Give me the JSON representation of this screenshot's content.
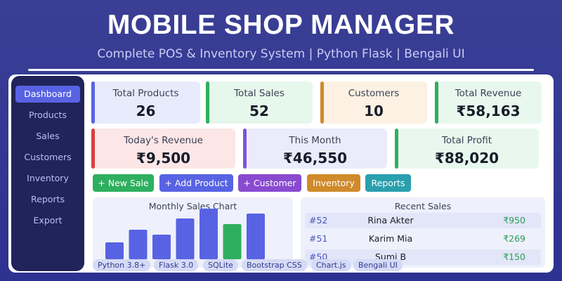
{
  "header": {
    "title": "MOBILE SHOP MANAGER",
    "subtitle": "Complete POS & Inventory System  |  Python Flask  |  Bengali UI"
  },
  "sidebar": {
    "items": [
      {
        "label": "Dashboard",
        "active": true
      },
      {
        "label": "Products"
      },
      {
        "label": "Sales"
      },
      {
        "label": "Customers"
      },
      {
        "label": "Inventory"
      },
      {
        "label": "Reports"
      },
      {
        "label": "Export"
      }
    ]
  },
  "stats_row1": [
    {
      "label": "Total Products",
      "value": "26",
      "accent": "#5863e3",
      "bg": "#e8ebfb"
    },
    {
      "label": "Total Sales",
      "value": "52",
      "accent": "#2eaf5f",
      "bg": "#e6f7ec"
    },
    {
      "label": "Customers",
      "value": "10",
      "accent": "#d08a2a",
      "bg": "#fcf1e2"
    },
    {
      "label": "Total Revenue",
      "value": "₹58,163",
      "accent": "#2eaf5f",
      "bg": "#e8f8ee"
    }
  ],
  "stats_row2": [
    {
      "label": "Today's Revenue",
      "value": "₹9,500",
      "accent": "#d94040",
      "bg": "#fde6e6"
    },
    {
      "label": "This Month",
      "value": "₹46,550",
      "accent": "#7a55d6",
      "bg": "#ecebfc"
    },
    {
      "label": "Total Profit",
      "value": "₹88,020",
      "accent": "#2eaf5f",
      "bg": "#e8f8ee"
    }
  ],
  "actions": [
    {
      "label": "+ New Sale",
      "color": "#2eaf5f"
    },
    {
      "label": "+ Add Product",
      "color": "#5863e3"
    },
    {
      "label": "+ Customer",
      "color": "#8a4ad0"
    },
    {
      "label": "Inventory",
      "color": "#d08a2a"
    },
    {
      "label": "Reports",
      "color": "#2a9fae"
    }
  ],
  "chart": {
    "title": "Monthly Sales Chart",
    "colors": {
      "default": "#5863e3",
      "highlight": "#2eaf5f"
    }
  },
  "chart_data": {
    "type": "bar",
    "title": "Monthly Sales Chart",
    "values": [
      24,
      42,
      35,
      58,
      72,
      50,
      65
    ],
    "highlight_index": 5
  },
  "recent_sales": {
    "title": "Recent Sales",
    "rows": [
      {
        "id": "#52",
        "name": "Rina Akter",
        "amount": "₹950"
      },
      {
        "id": "#51",
        "name": "Karim Mia",
        "amount": "₹269"
      },
      {
        "id": "#50",
        "name": "Sumi B",
        "amount": "₹150"
      }
    ]
  },
  "tech_tags": [
    "Python 3.8+",
    "Flask 3.0",
    "SQLite",
    "Bootstrap CSS",
    "Chart.js",
    "Bengali UI"
  ]
}
